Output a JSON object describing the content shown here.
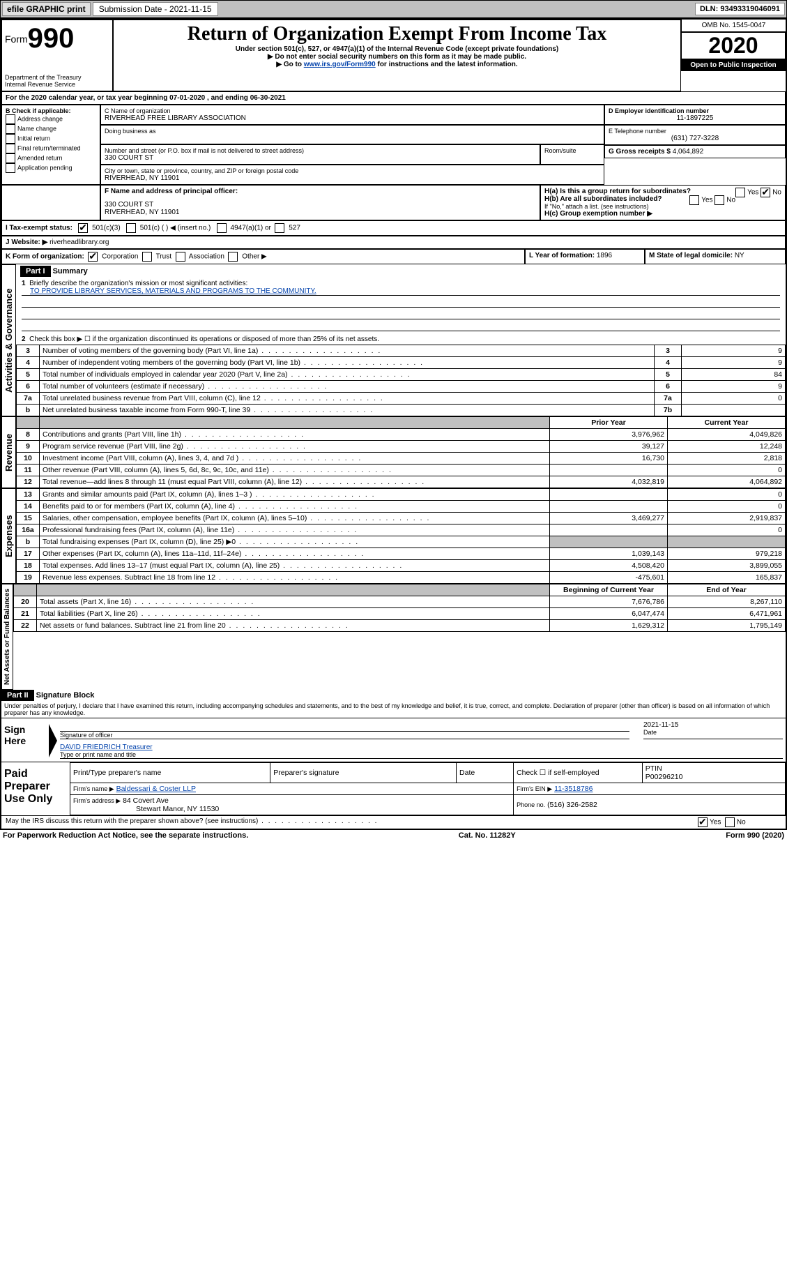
{
  "topbar": {
    "efile": "efile GRAPHIC print",
    "submission": "Submission Date - 2021-11-15",
    "dln": "DLN: 93493319046091"
  },
  "head": {
    "form_prefix": "Form",
    "form_number": "990",
    "title": "Return of Organization Exempt From Income Tax",
    "subtitle": "Under section 501(c), 527, or 4947(a)(1) of the Internal Revenue Code (except private foundations)",
    "warn1": "▶ Do not enter social security numbers on this form as it may be made public.",
    "warn2_pre": "▶ Go to ",
    "warn2_link": "www.irs.gov/Form990",
    "warn2_post": " for instructions and the latest information.",
    "dept1": "Department of the Treasury",
    "dept2": "Internal Revenue Service",
    "omb": "OMB No. 1545-0047",
    "year": "2020",
    "inspection": "Open to Public Inspection"
  },
  "A": {
    "text": "For the 2020 calendar year, or tax year beginning 07-01-2020    , and ending 06-30-2021"
  },
  "B": {
    "label": "B Check if applicable:",
    "items": [
      "Address change",
      "Name change",
      "Initial return",
      "Final return/terminated",
      "Amended return",
      "Application pending"
    ]
  },
  "C": {
    "label_name": "C Name of organization",
    "org_name": "RIVERHEAD FREE LIBRARY ASSOCIATION",
    "dba_label": "Doing business as",
    "street_label": "Number and street (or P.O. box if mail is not delivered to street address)",
    "room_label": "Room/suite",
    "street": "330 COURT ST",
    "city_label": "City or town, state or province, country, and ZIP or foreign postal code",
    "city": "RIVERHEAD, NY  11901"
  },
  "D": {
    "label": "D Employer identification number",
    "value": "11-1897225"
  },
  "E": {
    "label": "E Telephone number",
    "value": "(631) 727-3228"
  },
  "G": {
    "label": "G Gross receipts $",
    "value": "4,064,892"
  },
  "F": {
    "label": "F  Name and address of principal officer:",
    "l1": "330 COURT ST",
    "l2": "RIVERHEAD, NY  11901"
  },
  "H": {
    "a": "H(a)  Is this a group return for subordinates?",
    "b": "H(b)  Are all subordinates included?",
    "note": "If \"No,\" attach a list. (see instructions)",
    "c": "H(c)  Group exemption number ▶",
    "yes": "Yes",
    "no": "No"
  },
  "I": {
    "label": "I    Tax-exempt status:",
    "o1": "501(c)(3)",
    "o2": "501(c) (  ) ◀ (insert no.)",
    "o3": "4947(a)(1) or",
    "o4": "527"
  },
  "J": {
    "label": "J   Website: ▶",
    "value": " riverheadlibrary.org"
  },
  "K": {
    "label": "K Form of organization:",
    "o1": "Corporation",
    "o2": "Trust",
    "o3": "Association",
    "o4": "Other ▶"
  },
  "L": {
    "label": "L Year of formation:",
    "value": "1896"
  },
  "M": {
    "label": "M State of legal domicile:",
    "value": "NY"
  },
  "partI": {
    "hdr": "Part I",
    "title": "Summary",
    "side_ag": "Activities & Governance",
    "side_rev": "Revenue",
    "side_exp": "Expenses",
    "side_na": "Net Assets or Fund Balances",
    "l1": "Briefly describe the organization's mission or most significant activities:",
    "l1v": "TO PROVIDE LIBRARY SERVICES, MATERIALS AND PROGRAMS TO THE COMMUNITY.",
    "l2": "Check this box ▶ ☐  if the organization discontinued its operations or disposed of more than 25% of its net assets.",
    "lines": [
      {
        "n": "3",
        "t": "Number of voting members of the governing body (Part VI, line 1a)",
        "box": "3",
        "v": "9"
      },
      {
        "n": "4",
        "t": "Number of independent voting members of the governing body (Part VI, line 1b)",
        "box": "4",
        "v": "9"
      },
      {
        "n": "5",
        "t": "Total number of individuals employed in calendar year 2020 (Part V, line 2a)",
        "box": "5",
        "v": "84"
      },
      {
        "n": "6",
        "t": "Total number of volunteers (estimate if necessary)",
        "box": "6",
        "v": "9"
      },
      {
        "n": "7a",
        "t": "Total unrelated business revenue from Part VIII, column (C), line 12",
        "box": "7a",
        "v": "0"
      },
      {
        "n": "b",
        "t": "Net unrelated business taxable income from Form 990-T, line 39",
        "box": "7b",
        "v": ""
      }
    ],
    "col_prior": "Prior Year",
    "col_curr": "Current Year",
    "rev": [
      {
        "n": "8",
        "t": "Contributions and grants (Part VIII, line 1h)",
        "p": "3,976,962",
        "c": "4,049,826"
      },
      {
        "n": "9",
        "t": "Program service revenue (Part VIII, line 2g)",
        "p": "39,127",
        "c": "12,248"
      },
      {
        "n": "10",
        "t": "Investment income (Part VIII, column (A), lines 3, 4, and 7d )",
        "p": "16,730",
        "c": "2,818"
      },
      {
        "n": "11",
        "t": "Other revenue (Part VIII, column (A), lines 5, 6d, 8c, 9c, 10c, and 11e)",
        "p": "",
        "c": "0"
      },
      {
        "n": "12",
        "t": "Total revenue—add lines 8 through 11 (must equal Part VIII, column (A), line 12)",
        "p": "4,032,819",
        "c": "4,064,892"
      }
    ],
    "exp": [
      {
        "n": "13",
        "t": "Grants and similar amounts paid (Part IX, column (A), lines 1–3 )",
        "p": "",
        "c": "0"
      },
      {
        "n": "14",
        "t": "Benefits paid to or for members (Part IX, column (A), line 4)",
        "p": "",
        "c": "0"
      },
      {
        "n": "15",
        "t": "Salaries, other compensation, employee benefits (Part IX, column (A), lines 5–10)",
        "p": "3,469,277",
        "c": "2,919,837"
      },
      {
        "n": "16a",
        "t": "Professional fundraising fees (Part IX, column (A), line 11e)",
        "p": "",
        "c": "0"
      },
      {
        "n": "b",
        "t": "Total fundraising expenses (Part IX, column (D), line 25) ▶0",
        "p": "gray",
        "c": "gray"
      },
      {
        "n": "17",
        "t": "Other expenses (Part IX, column (A), lines 11a–11d, 11f–24e)",
        "p": "1,039,143",
        "c": "979,218"
      },
      {
        "n": "18",
        "t": "Total expenses. Add lines 13–17 (must equal Part IX, column (A), line 25)",
        "p": "4,508,420",
        "c": "3,899,055"
      },
      {
        "n": "19",
        "t": "Revenue less expenses. Subtract line 18 from line 12",
        "p": "-475,601",
        "c": "165,837"
      }
    ],
    "col_beg": "Beginning of Current Year",
    "col_end": "End of Year",
    "na": [
      {
        "n": "20",
        "t": "Total assets (Part X, line 16)",
        "p": "7,676,786",
        "c": "8,267,110"
      },
      {
        "n": "21",
        "t": "Total liabilities (Part X, line 26)",
        "p": "6,047,474",
        "c": "6,471,961"
      },
      {
        "n": "22",
        "t": "Net assets or fund balances. Subtract line 21 from line 20",
        "p": "1,629,312",
        "c": "1,795,149"
      }
    ]
  },
  "partII": {
    "hdr": "Part II",
    "title": "Signature Block",
    "decl": "Under penalties of perjury, I declare that I have examined this return, including accompanying schedules and statements, and to the best of my knowledge and belief, it is true, correct, and complete. Declaration of preparer (other than officer) is based on all information of which preparer has any knowledge.",
    "sign_here": "Sign Here",
    "sig_officer": "Signature of officer",
    "date_lbl": "Date",
    "date": "2021-11-15",
    "name": "DAVID FRIEDRICH  Treasurer",
    "type_lbl": "Type or print name and title",
    "paid": "Paid Preparer Use Only",
    "c_name": "Print/Type preparer's name",
    "c_sig": "Preparer's signature",
    "c_date": "Date",
    "c_check": "Check ☐  if self-employed",
    "ptin_lbl": "PTIN",
    "ptin": "P00296210",
    "firm_lbl": "Firm's name     ▶",
    "firm": "Baldessari & Coster LLP",
    "ein_lbl": "Firm's EIN ▶",
    "ein": "11-3518786",
    "addr_lbl": "Firm's address ▶",
    "addr1": "84 Covert Ave",
    "addr2": "Stewart Manor, NY  11530",
    "phone_lbl": "Phone no.",
    "phone": "(516) 326-2582",
    "discuss": "May the IRS discuss this return with the preparer shown above? (see instructions)",
    "yes": "Yes",
    "no": "No"
  },
  "footer": {
    "l": "For Paperwork Reduction Act Notice, see the separate instructions.",
    "c": "Cat. No. 11282Y",
    "r": "Form 990 (2020)"
  }
}
